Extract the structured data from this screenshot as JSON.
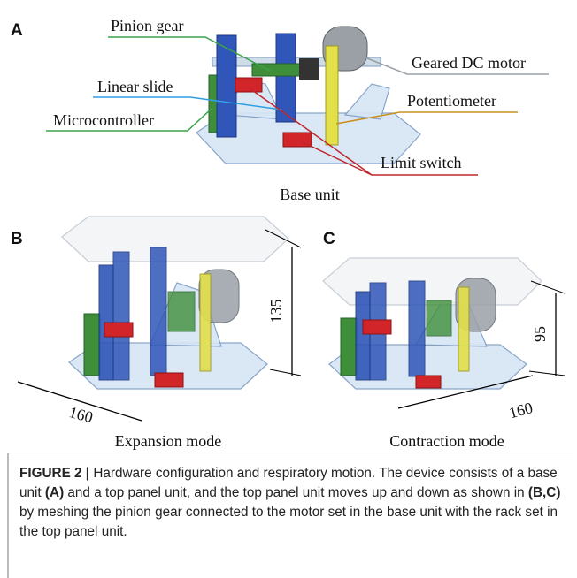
{
  "panel_a": {
    "letter": "A",
    "labels": {
      "pinion_gear": "Pinion gear",
      "motor": "Geared DC motor",
      "linear_slide": "Linear slide",
      "potentiometer": "Potentiometer",
      "microcontroller": "Microcontroller",
      "limit_switch": "Limit switch"
    },
    "caption": "Base unit"
  },
  "panel_b": {
    "letter": "B",
    "height": 135,
    "width": 160,
    "caption": "Expansion mode"
  },
  "panel_c": {
    "letter": "C",
    "height": 95,
    "width": 160,
    "caption": "Contraction mode"
  },
  "figure_caption": {
    "label": "FIGURE 2 |",
    "segments": [
      "Hardware configuration and respiratory motion. The device consists of a base unit ",
      "(A)",
      " and a top panel unit, and the top panel unit moves up and down as shown in ",
      "(B,C)",
      " by meshing the pinion gear connected to the motor set in the base unit with the rack set in the top panel unit."
    ]
  }
}
